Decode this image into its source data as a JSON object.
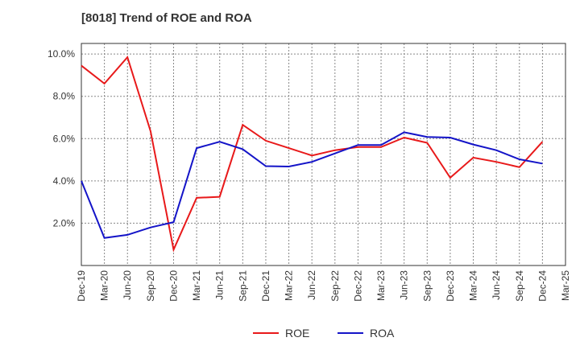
{
  "chart_data": {
    "type": "line",
    "title": "[8018]  Trend of ROE and ROA",
    "categories": [
      "Dec-19",
      "Mar-20",
      "Jun-20",
      "Sep-20",
      "Dec-20",
      "Mar-21",
      "Jun-21",
      "Sep-21",
      "Dec-21",
      "Mar-22",
      "Jun-22",
      "Sep-22",
      "Dec-22",
      "Mar-23",
      "Jun-23",
      "Sep-23",
      "Dec-23",
      "Mar-24",
      "Jun-24",
      "Sep-24",
      "Dec-24",
      "Mar-25"
    ],
    "yticks": [
      "2.0%",
      "4.0%",
      "6.0%",
      "8.0%",
      "10.0%"
    ],
    "ytick_values": [
      2,
      4,
      6,
      8,
      10
    ],
    "ylim": [
      0.0,
      10.5
    ],
    "grid": true,
    "legend_position": "bottom-center",
    "series": [
      {
        "name": "ROE",
        "color": "#e8191a",
        "values": [
          9.45,
          8.6,
          9.85,
          6.35,
          0.75,
          3.2,
          3.25,
          6.65,
          5.9,
          5.55,
          5.2,
          5.45,
          5.6,
          5.6,
          6.05,
          5.8,
          4.15,
          5.1,
          4.9,
          4.65,
          5.85,
          null
        ]
      },
      {
        "name": "ROA",
        "color": "#1414c8",
        "values": [
          4.0,
          1.3,
          1.45,
          1.8,
          2.05,
          5.55,
          5.85,
          5.5,
          4.7,
          4.68,
          4.9,
          5.3,
          5.7,
          5.7,
          6.3,
          6.08,
          6.05,
          5.72,
          5.45,
          5.02,
          4.82,
          null
        ]
      }
    ]
  }
}
